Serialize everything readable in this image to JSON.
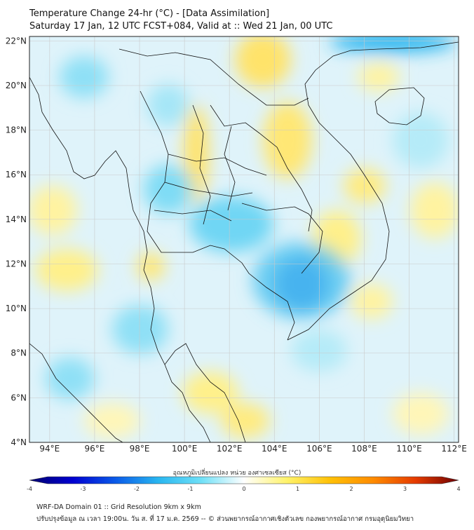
{
  "title": {
    "line1": "Temperature Change 24-hr (°C) - [Data Assimilation]",
    "line2": "Saturday 17 Jan, 12 UTC FCST+084, Valid at :: Wed 21 Jan, 00 UTC"
  },
  "axes": {
    "lat_labels": [
      {
        "value": 22,
        "label": "22°N"
      },
      {
        "value": 20,
        "label": "20°N"
      },
      {
        "value": 18,
        "label": "18°N"
      },
      {
        "value": 16,
        "label": "16°N"
      },
      {
        "value": 14,
        "label": "14°N"
      },
      {
        "value": 12,
        "label": "12°N"
      },
      {
        "value": 10,
        "label": "10°N"
      },
      {
        "value": 8,
        "label": "8°N"
      },
      {
        "value": 6,
        "label": "6°N"
      },
      {
        "value": 4,
        "label": "4°N"
      }
    ],
    "lon_labels": [
      {
        "value": 94,
        "label": "94°E"
      },
      {
        "value": 96,
        "label": "96°E"
      },
      {
        "value": 98,
        "label": "98°E"
      },
      {
        "value": 100,
        "label": "100°E"
      },
      {
        "value": 102,
        "label": "102°E"
      },
      {
        "value": 104,
        "label": "104°E"
      },
      {
        "value": 106,
        "label": "106°E"
      },
      {
        "value": 108,
        "label": "108°E"
      },
      {
        "value": 110,
        "label": "110°E"
      },
      {
        "value": 112,
        "label": "112°E"
      }
    ],
    "lat_range": [
      4,
      22.2
    ],
    "lon_range": [
      93.1,
      112.2
    ]
  },
  "colorbar": {
    "title": "อุณหภูมิเปลี่ยนแปลง หน่วย องศาเซลเซียส (°C)",
    "range": [
      -4,
      4
    ],
    "ticks": [
      {
        "value": -4,
        "label": "-4"
      },
      {
        "value": -3,
        "label": "-3"
      },
      {
        "value": -2,
        "label": "-2"
      },
      {
        "value": -1,
        "label": "-1"
      },
      {
        "value": 0,
        "label": "0"
      },
      {
        "value": 1,
        "label": "1"
      },
      {
        "value": 2,
        "label": "2"
      },
      {
        "value": 3,
        "label": "3"
      },
      {
        "value": 4,
        "label": "4"
      }
    ],
    "colors": [
      "#00006e",
      "#0000d0",
      "#0a5ae8",
      "#29b6f0",
      "#6fe0f7",
      "#ffffff",
      "#fff36a",
      "#ffc107",
      "#ff8c00",
      "#e53b00",
      "#6e0000"
    ]
  },
  "map_colors": {
    "land_background": "#d8f0f8",
    "gridline": "#c9c9c9",
    "border": "#111111"
  },
  "footer": {
    "line1": "WRF-DA Domain 01 :: Grid Resolution 9km x 9km",
    "line2": "ปรับปรุงข้อมูล ณ เวลา 19:00น. วัน ส. ที่ 17 ม.ค. 2569 -- © ส่วนพยากรณ์อากาศเชิงตัวเลข กองพยากรณ์อากาศ กรมอุตุนิยมวิทยา"
  }
}
